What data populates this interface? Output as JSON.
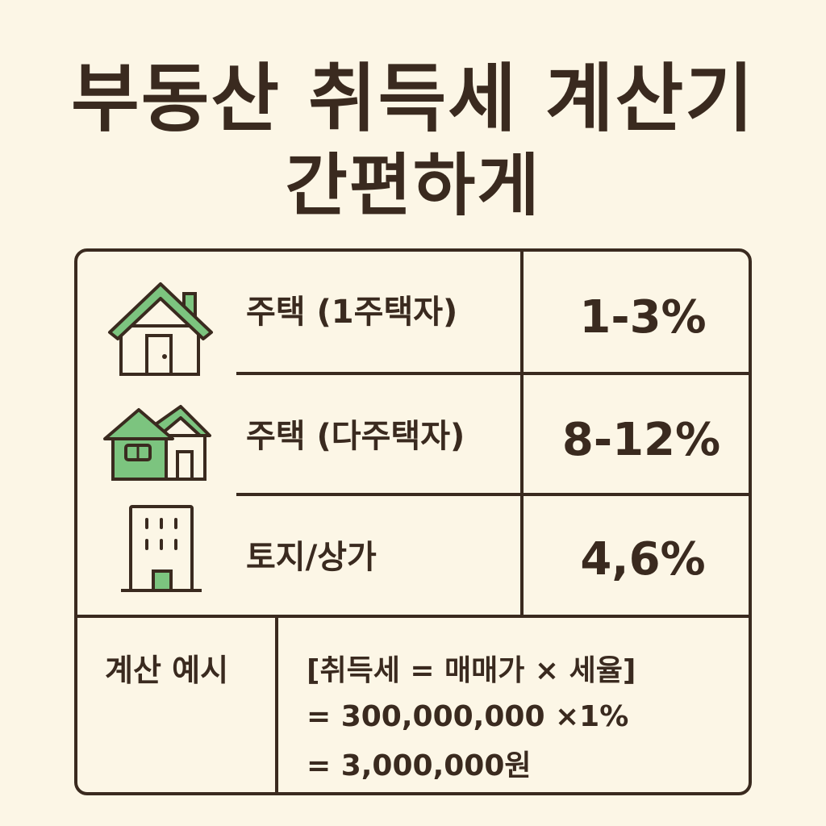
{
  "title": {
    "line1": "부동산 취득세 계산기",
    "line2": "간편하게"
  },
  "rows": [
    {
      "icon": "house-icon",
      "label": "주택 (1주택자)",
      "rate": "1-3%"
    },
    {
      "icon": "two-houses-icon",
      "label": "주택 (다주택자)",
      "rate": "8-12%"
    },
    {
      "icon": "building-icon",
      "label": "토지/상가",
      "rate": "4,6%"
    }
  ],
  "example": {
    "label": "계산 예시",
    "formula": "[취득세 = 매매가 × 세율]",
    "line2": "= 300,000,000 ×1%",
    "line3": "= 3,000,000원"
  },
  "colors": {
    "background": "#fcf6e6",
    "text": "#3a2a1f",
    "icon_fill": "#7cc47f"
  }
}
